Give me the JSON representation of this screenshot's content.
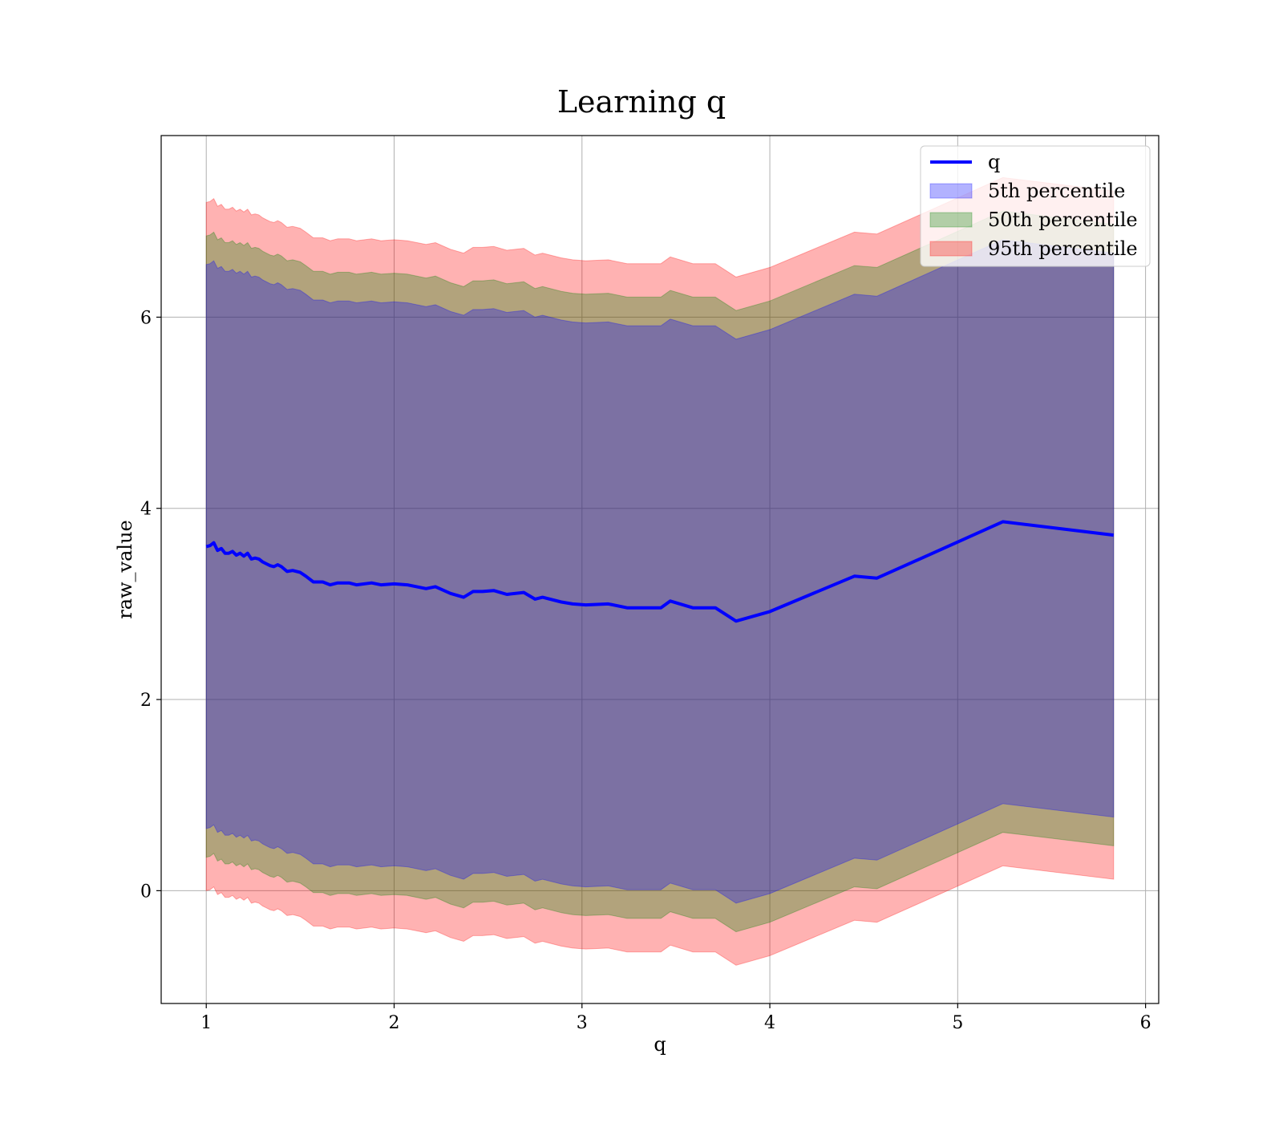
{
  "chart_data": {
    "type": "area",
    "title": "Learning q",
    "xlabel": "q",
    "ylabel": "raw_value",
    "xlim": [
      0.76,
      6.07
    ],
    "ylim": [
      -1.18,
      7.9
    ],
    "xticks": [
      1,
      2,
      3,
      4,
      5,
      6
    ],
    "yticks": [
      0,
      2,
      4,
      6
    ],
    "grid": true,
    "legend_position": "upper right",
    "x": [
      1.0,
      1.02,
      1.04,
      1.06,
      1.08,
      1.1,
      1.12,
      1.14,
      1.16,
      1.18,
      1.2,
      1.22,
      1.24,
      1.26,
      1.28,
      1.3,
      1.32,
      1.34,
      1.36,
      1.38,
      1.4,
      1.43,
      1.46,
      1.5,
      1.53,
      1.57,
      1.62,
      1.66,
      1.7,
      1.76,
      1.8,
      1.88,
      1.93,
      2.0,
      2.07,
      2.17,
      2.22,
      2.3,
      2.37,
      2.42,
      2.47,
      2.53,
      2.6,
      2.69,
      2.75,
      2.79,
      2.89,
      2.95,
      3.02,
      3.14,
      3.24,
      3.42,
      3.47,
      3.59,
      3.71,
      3.82,
      4.0,
      4.45,
      4.57,
      4.9,
      5.24,
      5.83
    ],
    "series": [
      {
        "name": "q",
        "kind": "line",
        "color": "#0000ff",
        "values": [
          3.6,
          3.61,
          3.64,
          3.56,
          3.58,
          3.53,
          3.53,
          3.55,
          3.51,
          3.53,
          3.5,
          3.53,
          3.47,
          3.48,
          3.47,
          3.44,
          3.42,
          3.4,
          3.39,
          3.41,
          3.39,
          3.34,
          3.35,
          3.33,
          3.29,
          3.23,
          3.23,
          3.2,
          3.22,
          3.22,
          3.2,
          3.22,
          3.2,
          3.21,
          3.2,
          3.16,
          3.18,
          3.11,
          3.07,
          3.13,
          3.13,
          3.14,
          3.1,
          3.12,
          3.05,
          3.07,
          3.02,
          3.0,
          2.99,
          3.0,
          2.96,
          2.96,
          3.03,
          2.96,
          2.96,
          2.82,
          2.92,
          3.29,
          3.27,
          3.56,
          3.86,
          3.72
        ]
      },
      {
        "name": "5th percentile",
        "kind": "band",
        "color": "#0000ff",
        "halfwidth": 2.95
      },
      {
        "name": "50th percentile",
        "kind": "band",
        "color": "#008000",
        "halfwidth": 3.25
      },
      {
        "name": "95th percentile",
        "kind": "band",
        "color": "#ff0000",
        "halfwidth": 3.6
      }
    ]
  }
}
